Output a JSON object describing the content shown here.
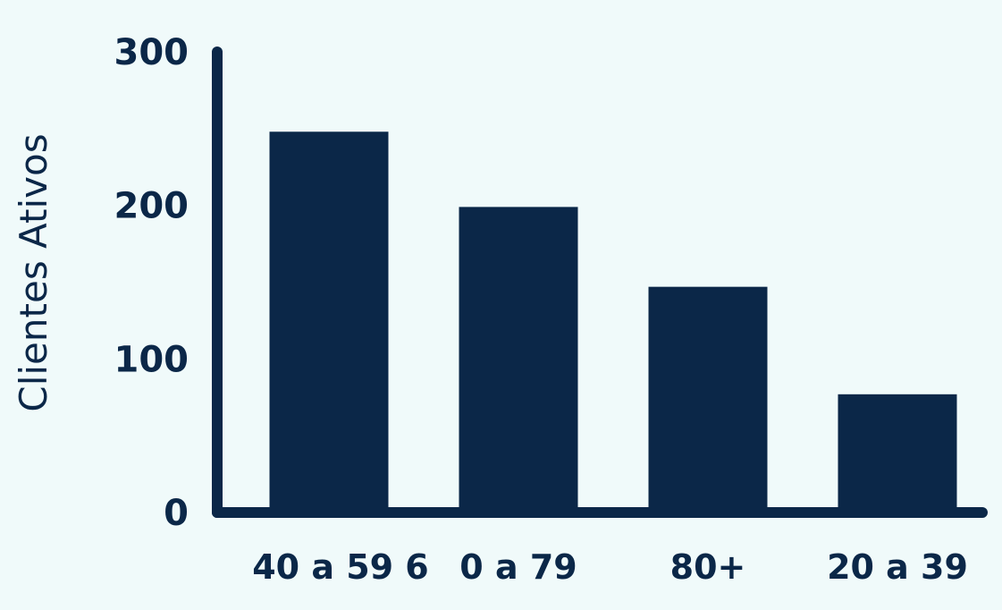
{
  "colors": {
    "background": "#f0fafa",
    "bar": "#0b2748",
    "axis": "#0b2748",
    "text": "#0b2748"
  },
  "chart_data": {
    "type": "bar",
    "categories": [
      "40 a 59 6",
      "0 a 79",
      "80+",
      "20 a 39"
    ],
    "values": [
      248,
      199,
      147,
      77
    ],
    "title": "",
    "xlabel": "",
    "ylabel": "Clientes Ativos",
    "ylim": [
      0,
      300
    ],
    "yticks": [
      0,
      100,
      200,
      300
    ],
    "grid": false,
    "legend": "none"
  }
}
